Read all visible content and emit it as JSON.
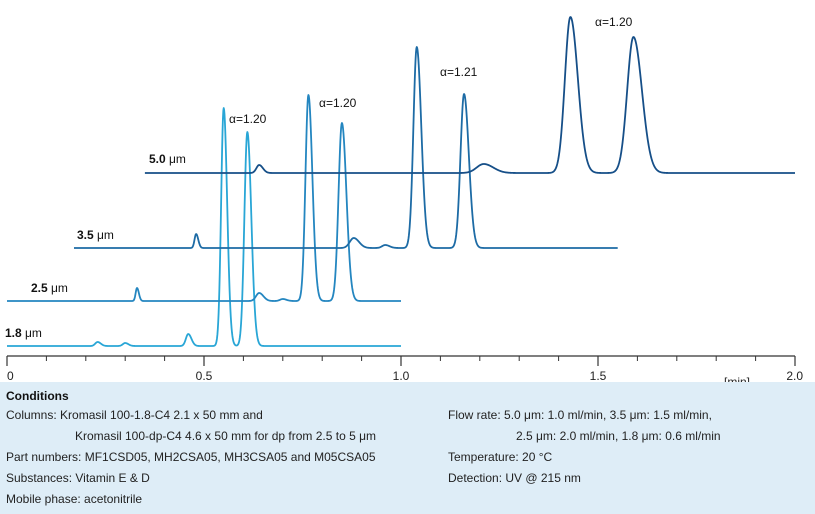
{
  "chart_data": {
    "type": "line",
    "x_axis": {
      "range": [
        0,
        2.0
      ],
      "ticks": [
        {
          "value": 0,
          "label": "0"
        },
        {
          "value": 0.5,
          "label": "0.5"
        },
        {
          "value": 1.0,
          "label": "1.0"
        },
        {
          "value": 1.5,
          "label": "1.5"
        },
        {
          "value": 2.0,
          "label": "2.0"
        }
      ],
      "minor_step": 0.1,
      "unit_label": "[min]"
    },
    "series": [
      {
        "name": "1.8 μm",
        "label_bold": "1.8",
        "label_unit": " μm",
        "color": "#29a6d6",
        "x_start": 0.0,
        "x_end": 1.0,
        "peaks": [
          {
            "t": 0.23,
            "h": 4,
            "w": 0.006
          },
          {
            "t": 0.3,
            "h": 3,
            "w": 0.006
          },
          {
            "t": 0.46,
            "h": 12,
            "w": 0.006
          },
          {
            "t": 0.55,
            "h": 238,
            "w": 0.0065
          },
          {
            "t": 0.61,
            "h": 214,
            "w": 0.0075
          }
        ],
        "annotation": "α=1.20"
      },
      {
        "name": "2.5 μm",
        "label_bold": "2.5",
        "label_unit": " μm",
        "color": "#2486c0",
        "x_start": 0.0,
        "x_end": 1.0,
        "peaks": [
          {
            "t": 0.33,
            "h": 13,
            "w": 0.0035
          },
          {
            "t": 0.64,
            "h": 8,
            "w": 0.008
          },
          {
            "t": 0.7,
            "h": 2,
            "w": 0.007
          },
          {
            "t": 0.765,
            "h": 206,
            "w": 0.0075
          },
          {
            "t": 0.85,
            "h": 178,
            "w": 0.0085
          }
        ],
        "annotation": "α=1.20"
      },
      {
        "name": "3.5 μm",
        "label_bold": "3.5",
        "label_unit": " μm",
        "color": "#1d6ba5",
        "x_start": 0.17,
        "x_end": 1.55,
        "peaks": [
          {
            "t": 0.48,
            "h": 14,
            "w": 0.004
          },
          {
            "t": 0.88,
            "h": 10,
            "w": 0.01
          },
          {
            "t": 0.96,
            "h": 3,
            "w": 0.008
          },
          {
            "t": 1.04,
            "h": 201,
            "w": 0.0085
          },
          {
            "t": 1.16,
            "h": 154,
            "w": 0.009
          }
        ],
        "annotation": "α=1.21"
      },
      {
        "name": "5.0 μm",
        "label_bold": "5.0",
        "label_unit": " μm",
        "color": "#164f88",
        "x_start": 0.35,
        "x_end": 2.0,
        "peaks": [
          {
            "t": 0.64,
            "h": 8,
            "w": 0.007
          },
          {
            "t": 1.21,
            "h": 9,
            "w": 0.018
          },
          {
            "t": 1.43,
            "h": 156,
            "w": 0.014
          },
          {
            "t": 1.59,
            "h": 136,
            "w": 0.016
          }
        ],
        "annotation": "α=1.20"
      }
    ]
  },
  "conditions": {
    "title": "Conditions",
    "columns_label": "Columns:",
    "columns_line1": "Kromasil 100-1.8-C4 2.1 x 50 mm and",
    "columns_line2": "Kromasil 100-dp-C4 4.6 x 50 mm for dp from 2.5 to 5 μm",
    "part_numbers": "Part numbers: MF1CSD05, MH2CSA05, MH3CSA05 and M05CSA05",
    "substances": "Substances: Vitamin E & D",
    "mobile_phase": "Mobile phase: acetonitrile",
    "flow_rate_line1": "Flow rate: 5.0 μm: 1.0 ml/min, 3.5 μm: 1.5 ml/min,",
    "flow_rate_line2": "2.5 μm: 2.0 ml/min, 1.8 μm: 0.6 ml/min",
    "temperature": "Temperature: 20 °C",
    "detection": "Detection: UV @ 215 nm"
  }
}
